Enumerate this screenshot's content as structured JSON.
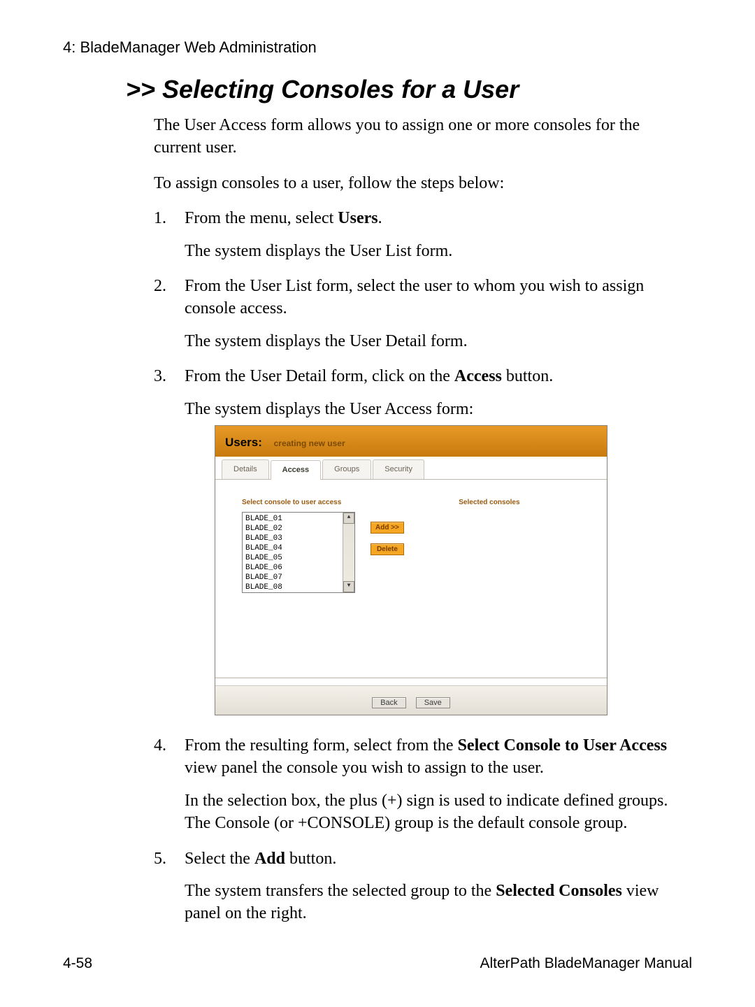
{
  "running_head": "4: BladeManager Web Administration",
  "heading": ">> Selecting Consoles for a User",
  "intro_1": "The User Access form allows you to assign one or more consoles for the current user.",
  "intro_2": "To assign consoles to a user, follow the steps below:",
  "steps": {
    "s1_a": "From the menu, select ",
    "s1_bold": "Users",
    "s1_b": ".",
    "s1_sub": "The system displays the User List form.",
    "s2": "From the User List form, select the user to whom you wish to assign console access.",
    "s2_sub": "The system displays the User Detail form.",
    "s3_a": "From the User Detail form, click on the ",
    "s3_bold": "Access",
    "s3_b": " button.",
    "s3_sub": "The system displays the User Access form:",
    "s4_a": "From the resulting form, select from the ",
    "s4_bold": "Select Console to User Access",
    "s4_b": " view panel the console you wish to assign to the user.",
    "s4_sub": "In the selection box, the plus (+) sign is used to indicate defined groups. The Console (or +CONSOLE) group is the default console group.",
    "s5_a": "Select the ",
    "s5_bold": "Add",
    "s5_b": " button.",
    "s5_sub_a": "The system transfers the selected group to the ",
    "s5_sub_bold": "Selected Consoles",
    "s5_sub_b": " view panel on the right."
  },
  "ui": {
    "title_main": "Users:",
    "title_sub": "creating new user",
    "tabs": {
      "t0": "Details",
      "t1": "Access",
      "t2": "Groups",
      "t3": "Security"
    },
    "active_tab_index": 1,
    "left_list_title": "Select console to user access",
    "right_list_title": "Selected consoles",
    "console_items": {
      "i0": "BLADE_01",
      "i1": "BLADE_02",
      "i2": "BLADE_03",
      "i3": "BLADE_04",
      "i4": "BLADE_05",
      "i5": "BLADE_06",
      "i6": "BLADE_07",
      "i7": "BLADE_08"
    },
    "btn_add": "Add >>",
    "btn_delete": "Delete",
    "btn_back": "Back",
    "btn_save": "Save",
    "colors": {
      "titlebar_bg": "#d88a18",
      "accent_text": "#9a5a10",
      "orange_btn_bg": "#f5a623",
      "orange_btn_border": "#b06a00"
    }
  },
  "footer_left": "4-58",
  "footer_right": "AlterPath BladeManager Manual"
}
